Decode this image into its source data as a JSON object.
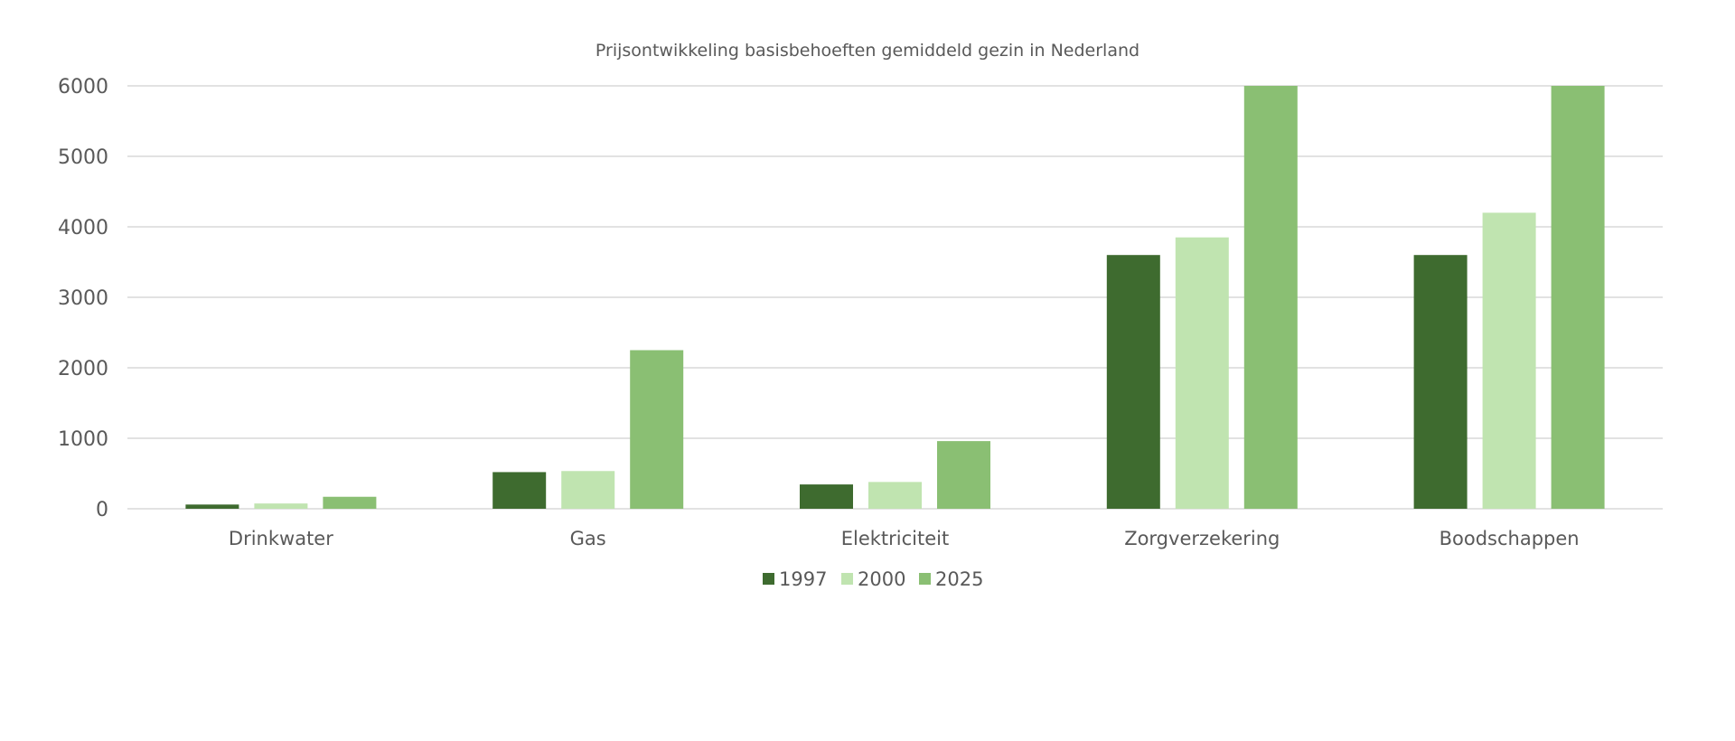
{
  "chart_data": {
    "type": "bar",
    "title": "Prijsontwikkeling basisbehoeften gemiddeld gezin in Nederland",
    "xlabel": "",
    "ylabel": "",
    "ylim": [
      0,
      6000
    ],
    "yticks": [
      "0",
      "1000",
      "2000",
      "3000",
      "4000",
      "5000",
      "6000"
    ],
    "ytick_values": [
      0,
      1000,
      2000,
      3000,
      4000,
      5000,
      6000
    ],
    "grid": true,
    "legend_position": "bottom",
    "categories": [
      "Drinkwater",
      "Gas",
      "Elektriciteit",
      "Zorgverzekering",
      "Boodschappen"
    ],
    "series": [
      {
        "name": "1997",
        "color": "#3e6b2f",
        "values": [
          60,
          520,
          345,
          3600,
          3600
        ]
      },
      {
        "name": "2000",
        "color": "#c0e4b0",
        "values": [
          75,
          535,
          380,
          3850,
          4200
        ]
      },
      {
        "name": "2025",
        "color": "#8abf73",
        "values": [
          170,
          2250,
          960,
          6000,
          6000
        ]
      }
    ]
  }
}
